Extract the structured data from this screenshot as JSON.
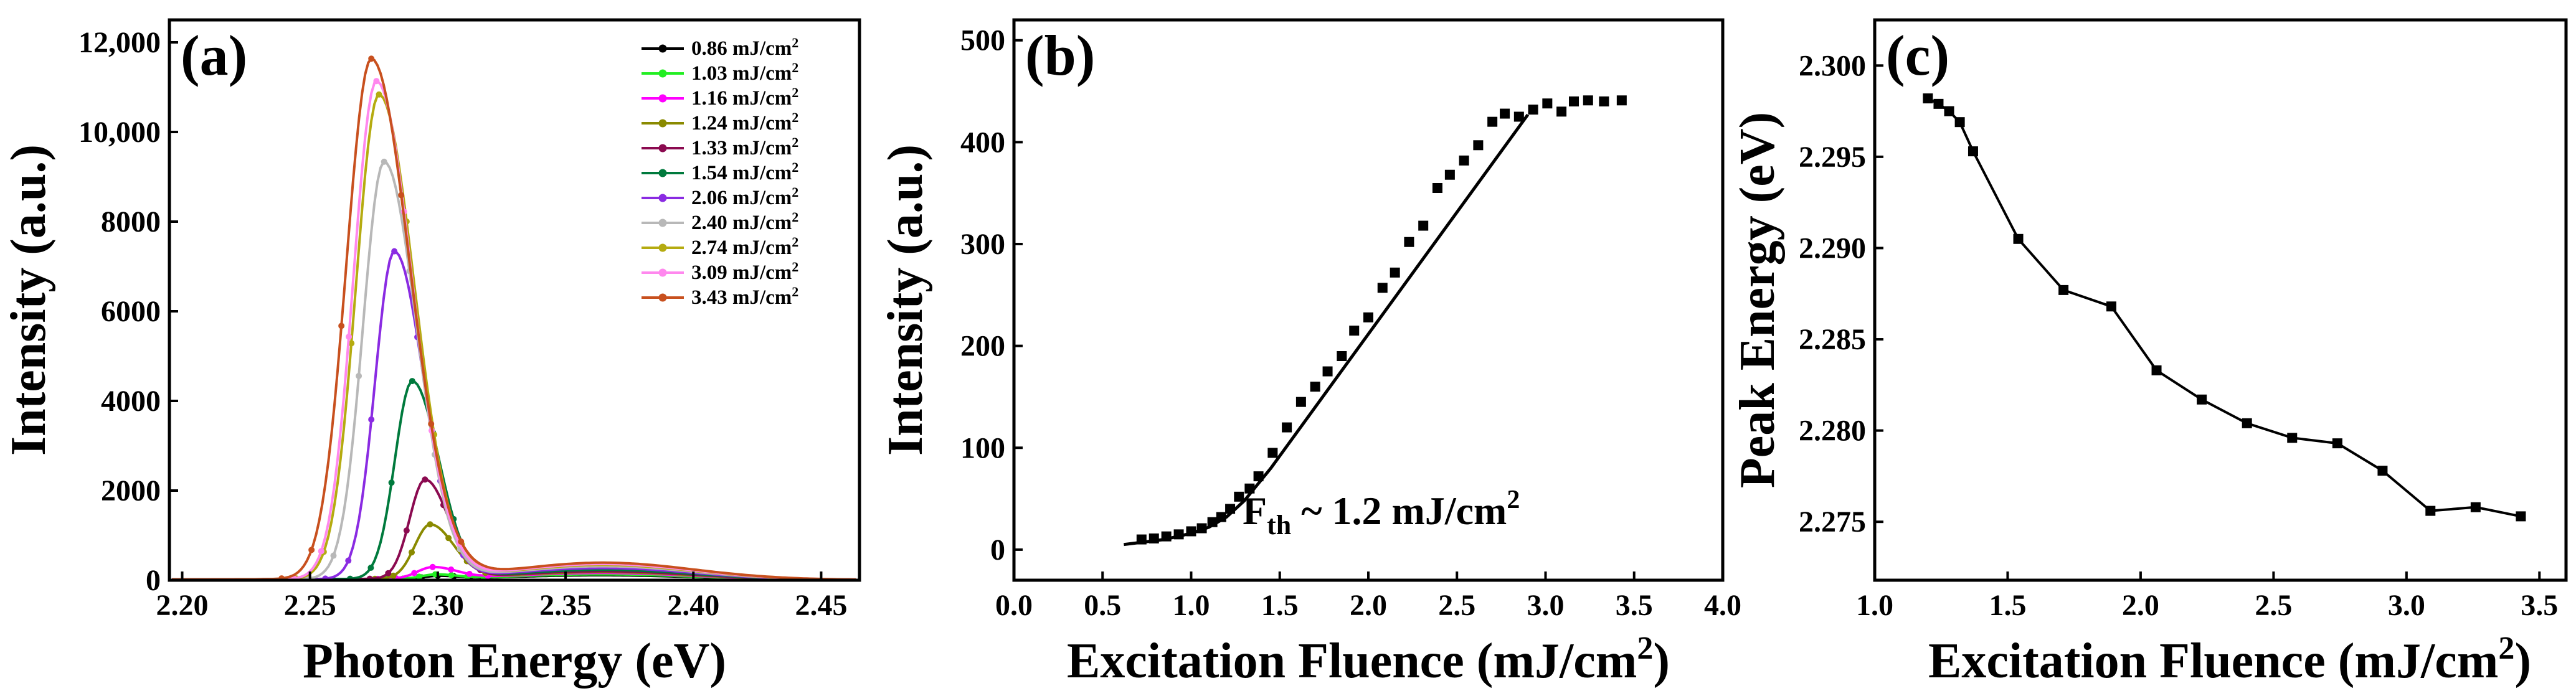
{
  "chart_data": [
    {
      "id": "a",
      "type": "line",
      "panel_label": "(a)",
      "xlabel": "Photon Energy (eV)",
      "ylabel": "Intensity (a.u.)",
      "xlim": [
        2.195,
        2.465
      ],
      "ylim": [
        0,
        12500
      ],
      "xticks": [
        2.2,
        2.25,
        2.3,
        2.35,
        2.4,
        2.45
      ],
      "xtick_labels": [
        "2.20",
        "2.25",
        "2.30",
        "2.35",
        "2.40",
        "2.45"
      ],
      "yticks": [
        0,
        2000,
        4000,
        6000,
        8000,
        10000,
        12000
      ],
      "ytick_labels": [
        "0",
        "2000",
        "4000",
        "6000",
        "8000",
        "10,000",
        "12,000"
      ],
      "legend_position": "top-right",
      "series": [
        {
          "name": "0.86 mJ/cm",
          "sup": "2",
          "color": "#000000",
          "marker": "circle",
          "center": 2.3,
          "sigma": 0.007,
          "peak": 60,
          "broad": 100
        },
        {
          "name": "1.03 mJ/cm",
          "sup": "2",
          "color": "#22ee22",
          "marker": "circle",
          "center": 2.299,
          "sigma": 0.007,
          "peak": 90,
          "broad": 120
        },
        {
          "name": "1.16 mJ/cm",
          "sup": "2",
          "color": "#ff00ff",
          "marker": "triangle-up",
          "center": 2.298,
          "sigma": 0.008,
          "peak": 250,
          "broad": 150
        },
        {
          "name": "1.24 mJ/cm",
          "sup": "2",
          "color": "#8a8a00",
          "marker": "triangle-down",
          "center": 2.297,
          "sigma": 0.008,
          "peak": 1200,
          "broad": 170
        },
        {
          "name": "1.33 mJ/cm",
          "sup": "2",
          "color": "#8b0a50",
          "marker": "diamond",
          "center": 2.295,
          "sigma": 0.008,
          "peak": 2200,
          "broad": 190
        },
        {
          "name": "1.54 mJ/cm",
          "sup": "2",
          "color": "#007a3d",
          "marker": "triangle-left",
          "center": 2.29,
          "sigma": 0.009,
          "peak": 4400,
          "broad": 220
        },
        {
          "name": "2.06 mJ/cm",
          "sup": "2",
          "color": "#8a2be2",
          "marker": "triangle-right",
          "center": 2.283,
          "sigma": 0.01,
          "peak": 7300,
          "broad": 260
        },
        {
          "name": "2.40 mJ/cm",
          "sup": "2",
          "color": "#b8b8b8",
          "marker": "hexagon",
          "center": 2.279,
          "sigma": 0.011,
          "peak": 9300,
          "broad": 300
        },
        {
          "name": "2.74 mJ/cm",
          "sup": "2",
          "color": "#b5ab10",
          "marker": "star",
          "center": 2.277,
          "sigma": 0.012,
          "peak": 10800,
          "broad": 330
        },
        {
          "name": "3.09 mJ/cm",
          "sup": "2",
          "color": "#ff88ee",
          "marker": "pentagon",
          "center": 2.276,
          "sigma": 0.012,
          "peak": 11100,
          "broad": 350
        },
        {
          "name": "3.43 mJ/cm",
          "sup": "2",
          "color": "#c8501e",
          "marker": "square",
          "center": 2.274,
          "sigma": 0.013,
          "peak": 11600,
          "broad": 380
        }
      ]
    },
    {
      "id": "b",
      "type": "scatter",
      "panel_label": "(b)",
      "xlabel": "Excitation Fluence (mJ/cm",
      "xlabel_sup": "2",
      "xlabel_suffix": ")",
      "ylabel": "Intensity (a.u.)",
      "xlim": [
        0,
        4.0
      ],
      "ylim": [
        -30,
        520
      ],
      "xticks": [
        0,
        0.5,
        1.0,
        1.5,
        2.0,
        2.5,
        3.0,
        3.5,
        4.0
      ],
      "xtick_labels": [
        "0.0",
        "0.5",
        "1.0",
        "1.5",
        "2.0",
        "2.5",
        "3.0",
        "3.5",
        "4.0"
      ],
      "yticks": [
        0,
        100,
        200,
        300,
        400,
        500
      ],
      "ytick_labels": [
        "0",
        "100",
        "200",
        "300",
        "400",
        "500"
      ],
      "points": {
        "x": [
          0.72,
          0.79,
          0.86,
          0.93,
          1.0,
          1.06,
          1.12,
          1.17,
          1.22,
          1.27,
          1.33,
          1.38,
          1.46,
          1.54,
          1.62,
          1.7,
          1.77,
          1.85,
          1.92,
          2.0,
          2.08,
          2.15,
          2.23,
          2.31,
          2.39,
          2.46,
          2.54,
          2.62,
          2.7,
          2.77,
          2.85,
          2.93,
          3.01,
          3.09,
          3.16,
          3.24,
          3.33,
          3.43
        ],
        "y": [
          10,
          11,
          13,
          15,
          18,
          21,
          27,
          32,
          40,
          52,
          60,
          72,
          95,
          120,
          145,
          160,
          175,
          190,
          215,
          228,
          257,
          272,
          302,
          318,
          355,
          368,
          382,
          397,
          420,
          428,
          425,
          432,
          438,
          430,
          440,
          441,
          440,
          441
        ]
      },
      "fit_line": {
        "x": [
          0.62,
          0.85,
          1.0,
          1.1,
          1.2,
          1.3,
          1.45,
          2.9
        ],
        "y": [
          5,
          10,
          16,
          22,
          32,
          48,
          80,
          427
        ]
      },
      "annotation": {
        "main": "F",
        "sub": "th",
        "rest": " ~ 1.2 mJ/cm",
        "sup": "2"
      }
    },
    {
      "id": "c",
      "type": "line",
      "panel_label": "(c)",
      "xlabel": "Excitation Fluence (mJ/cm",
      "xlabel_sup": "2",
      "xlabel_suffix": ")",
      "ylabel": "Peak Energy (eV)",
      "xlim": [
        1.0,
        3.6
      ],
      "ylim": [
        2.2718,
        2.3025
      ],
      "xticks": [
        1.0,
        1.5,
        2.0,
        2.5,
        3.0,
        3.5
      ],
      "xtick_labels": [
        "1.0",
        "1.5",
        "2.0",
        "2.5",
        "3.0",
        "3.5"
      ],
      "yticks": [
        2.275,
        2.28,
        2.285,
        2.29,
        2.295,
        2.3
      ],
      "ytick_labels": [
        "2.275",
        "2.280",
        "2.285",
        "2.290",
        "2.295",
        "2.300"
      ],
      "points": {
        "x": [
          1.2,
          1.24,
          1.28,
          1.32,
          1.37,
          1.54,
          1.71,
          1.89,
          2.06,
          2.23,
          2.4,
          2.57,
          2.74,
          2.91,
          3.09,
          3.26,
          3.43
        ],
        "y": [
          2.2982,
          2.2979,
          2.2975,
          2.2969,
          2.2953,
          2.2905,
          2.2877,
          2.2868,
          2.2833,
          2.2817,
          2.2804,
          2.2796,
          2.2793,
          2.2778,
          2.2756,
          2.2758,
          2.2753
        ]
      }
    }
  ]
}
